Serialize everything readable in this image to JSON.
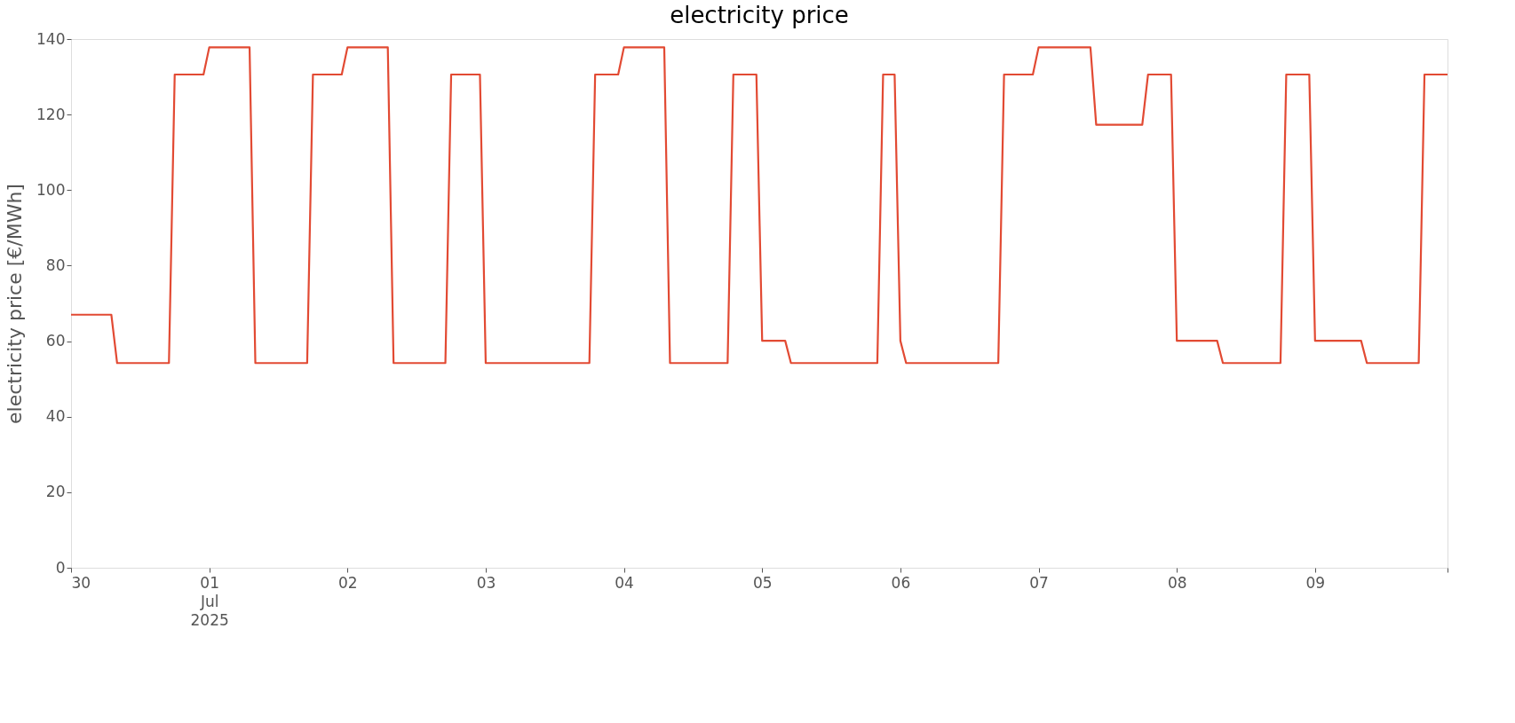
{
  "chart_data": {
    "type": "line",
    "title": "electricity price",
    "ylabel": "electricity price [€/MWh]",
    "xlim": [
      "2025-06-30T00:00",
      "2025-07-09T23:00"
    ],
    "xticks": [
      {
        "value": "2025-06-30T00:00",
        "label": "30"
      },
      {
        "value": "2025-07-01T00:00",
        "label": "01\nJul\n2025"
      },
      {
        "value": "2025-07-02T00:00",
        "label": "02"
      },
      {
        "value": "2025-07-03T00:00",
        "label": "03"
      },
      {
        "value": "2025-07-04T00:00",
        "label": "04"
      },
      {
        "value": "2025-07-05T00:00",
        "label": "05"
      },
      {
        "value": "2025-07-06T00:00",
        "label": "06"
      },
      {
        "value": "2025-07-07T00:00",
        "label": "07"
      },
      {
        "value": "2025-07-08T00:00",
        "label": "08"
      },
      {
        "value": "2025-07-09T00:00",
        "label": "09"
      },
      {
        "value": "2025-07-09T23:00",
        "label": null
      }
    ],
    "ylim": [
      0,
      140
    ],
    "yticks": [
      0,
      20,
      40,
      60,
      80,
      100,
      120,
      140
    ],
    "grid": false,
    "legend": false,
    "marker": "none",
    "line_style": "solid",
    "x": [
      "2025-06-30T00:00",
      "2025-06-30T07:00",
      "2025-06-30T08:00",
      "2025-06-30T17:00",
      "2025-06-30T18:00",
      "2025-06-30T23:00",
      "2025-07-01T00:00",
      "2025-07-01T07:00",
      "2025-07-01T08:00",
      "2025-07-01T17:00",
      "2025-07-01T18:00",
      "2025-07-01T23:00",
      "2025-07-02T00:00",
      "2025-07-02T07:00",
      "2025-07-02T08:00",
      "2025-07-02T17:00",
      "2025-07-02T18:00",
      "2025-07-02T23:00",
      "2025-07-03T00:00",
      "2025-07-03T18:00",
      "2025-07-03T19:00",
      "2025-07-03T23:00",
      "2025-07-04T00:00",
      "2025-07-04T07:00",
      "2025-07-04T08:00",
      "2025-07-04T18:00",
      "2025-07-04T19:00",
      "2025-07-04T23:00",
      "2025-07-05T00:00",
      "2025-07-05T04:00",
      "2025-07-05T05:00",
      "2025-07-05T20:00",
      "2025-07-05T21:00",
      "2025-07-05T23:00",
      "2025-07-06T00:00",
      "2025-07-06T01:00",
      "2025-07-06T17:00",
      "2025-07-06T18:00",
      "2025-07-06T23:00",
      "2025-07-07T00:00",
      "2025-07-07T09:00",
      "2025-07-07T10:00",
      "2025-07-07T18:00",
      "2025-07-07T19:00",
      "2025-07-07T23:00",
      "2025-07-08T00:00",
      "2025-07-08T07:00",
      "2025-07-08T08:00",
      "2025-07-08T18:00",
      "2025-07-08T19:00",
      "2025-07-08T23:00",
      "2025-07-09T00:00",
      "2025-07-09T08:00",
      "2025-07-09T09:00",
      "2025-07-09T18:00",
      "2025-07-09T19:00",
      "2025-07-09T23:00"
    ],
    "series": [
      {
        "color": "#e24a33",
        "values": [
          67.0,
          67.0,
          54.2,
          54.2,
          130.6,
          130.6,
          137.8,
          137.8,
          54.2,
          54.2,
          130.6,
          130.6,
          137.8,
          137.8,
          54.2,
          54.2,
          130.6,
          130.6,
          54.2,
          54.2,
          130.6,
          130.6,
          137.8,
          137.8,
          54.2,
          54.2,
          130.6,
          130.6,
          60.1,
          60.1,
          54.2,
          54.2,
          130.6,
          130.6,
          60.1,
          54.2,
          54.2,
          130.6,
          130.6,
          137.8,
          137.8,
          117.3,
          117.3,
          130.6,
          130.6,
          60.1,
          60.1,
          54.2,
          54.2,
          130.6,
          130.6,
          60.1,
          60.1,
          54.2,
          54.2,
          130.6,
          130.6
        ]
      }
    ]
  }
}
